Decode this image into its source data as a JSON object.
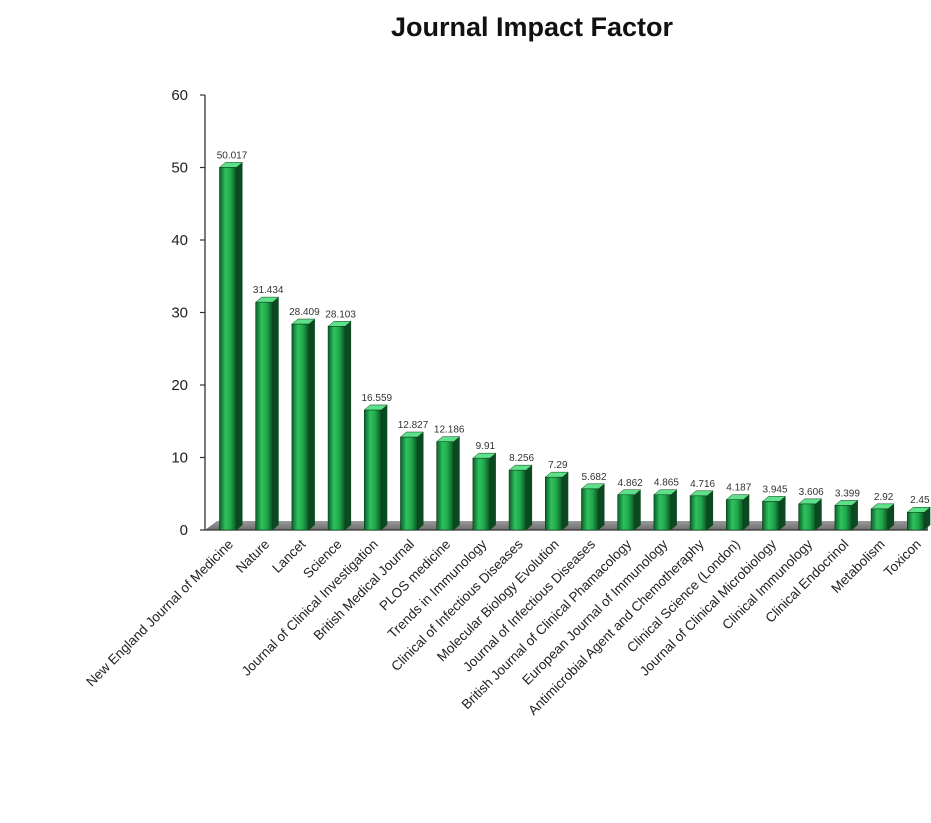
{
  "chart_data": {
    "type": "bar",
    "title": "Journal Impact Factor",
    "xlabel": "",
    "ylabel": "",
    "ylim": [
      0,
      60
    ],
    "yticks": [
      0,
      10,
      20,
      30,
      40,
      50,
      60
    ],
    "grid": false,
    "legend": "none",
    "bar_color": "#1f9e48",
    "categories": [
      "New England Journal of Medicine",
      "Nature",
      "Lancet",
      "Science",
      "Journal of Clinical Investigation",
      "British Medical Journal",
      "PLOS medicine",
      "Trends in Immunology",
      "Clinical of Infectious Diseases",
      "Molecular Biology Evolution",
      "Journal of Infectious Diseases",
      "British Journal of Clinical Phamacology",
      "European Journal of Immunology",
      "Antimicrobial Agent and Chemotheraphy",
      "Clinical Science (London)",
      "Journal of Clinical Microbiology",
      "Clinical Immunology",
      "Clinical Endocrinol",
      "Metabolism",
      "Toxicon"
    ],
    "values": [
      50.017,
      31.434,
      28.409,
      28.103,
      16.559,
      12.827,
      12.186,
      9.91,
      8.256,
      7.29,
      5.682,
      4.862,
      4.865,
      4.716,
      4.187,
      3.945,
      3.606,
      3.399,
      2.92,
      2.45
    ],
    "data_labels": [
      "50.017",
      "31.434",
      "28.409",
      "28.103",
      "16.559",
      "12.827",
      "12.186",
      "9.91",
      "8.256",
      "7.29",
      "5.682",
      "4.862",
      "4.865",
      "4.716",
      "4.187",
      "3.945",
      "3.606",
      "3.399",
      "2.92",
      "2.45"
    ]
  }
}
